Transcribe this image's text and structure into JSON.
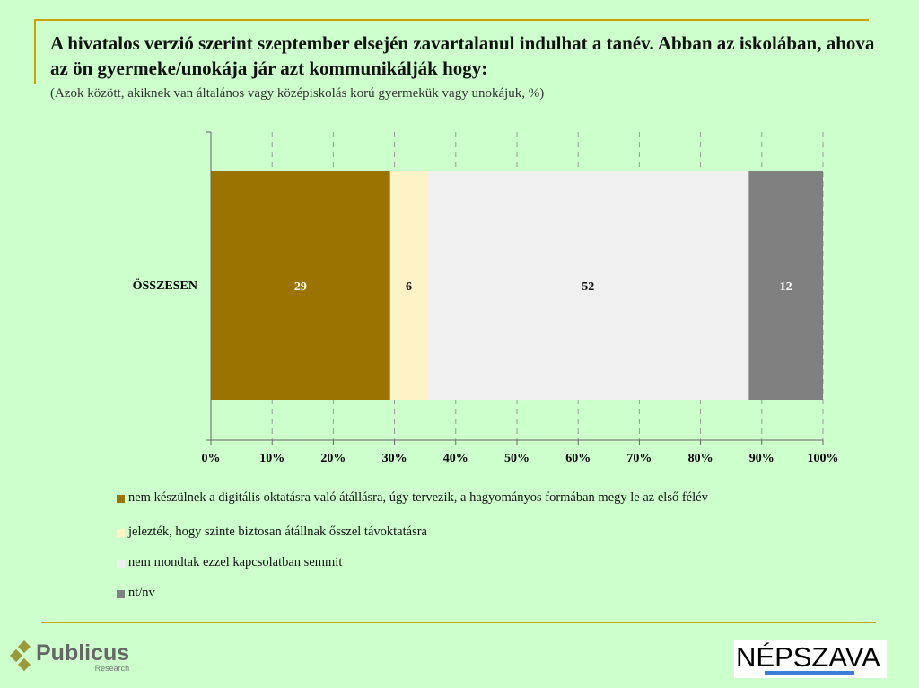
{
  "title": "A hivatalos verzió szerint szeptember elsején zavartalanul indulhat a tanév. Abban az iskolában, ahova az ön gyermeke/unokája jár azt kommunikálják hogy:",
  "subtitle": "(Azok között, akiknek van általános vagy középiskolás korú gyermekük vagy unokájuk, %)",
  "chart_data": {
    "type": "bar",
    "orientation": "horizontal-stacked-100",
    "categories": [
      "ÖSSZESEN"
    ],
    "series": [
      {
        "name": "nem készülnek a digitális oktatásra való átállásra, úgy tervezik, a hagyományos formában megy le az első félév",
        "values": [
          29
        ],
        "color": "#9a7300",
        "label_color": "#ffffff"
      },
      {
        "name": "jelezték, hogy szinte biztosan átállnak ősszel távoktatásra",
        "values": [
          6
        ],
        "color": "#fff2c6",
        "label_color": "#111111"
      },
      {
        "name": "nem mondtak ezzel kapcsolatban semmit",
        "values": [
          52
        ],
        "color": "#f0f0f0",
        "label_color": "#111111"
      },
      {
        "name": "nt/nv",
        "values": [
          12
        ],
        "color": "#808080",
        "label_color": "#ffffff"
      }
    ],
    "xlim": [
      0,
      100
    ],
    "xticks": [
      "0%",
      "10%",
      "20%",
      "30%",
      "40%",
      "50%",
      "60%",
      "70%",
      "80%",
      "90%",
      "100%"
    ],
    "grid": true,
    "legend": "bottom"
  },
  "footer": {
    "publicus": "Publicus",
    "publicus_sub": "Research",
    "nepszava": "NÉPSZAVA"
  }
}
